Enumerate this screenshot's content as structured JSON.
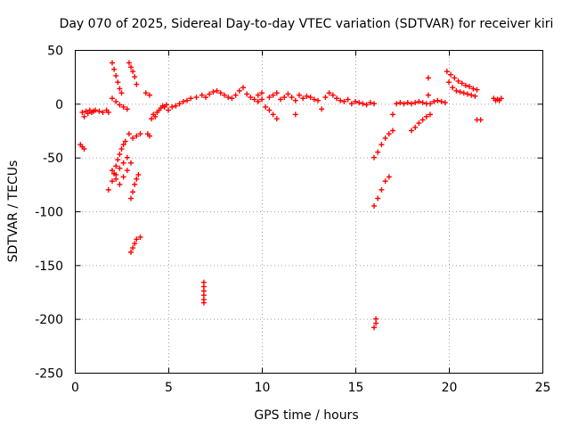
{
  "chart_data": {
    "type": "scatter",
    "title": "Day 070 of 2025, Sidereal Day-to-day VTEC variation (SDTVAR) for receiver kiri",
    "xlabel": "GPS time / hours",
    "ylabel": "SDTVAR / TECUs",
    "xlim": [
      0,
      25
    ],
    "ylim": [
      -250,
      50
    ],
    "xticks": [
      0,
      5,
      10,
      15,
      20,
      25
    ],
    "yticks": [
      -250,
      -200,
      -150,
      -100,
      -50,
      0,
      50
    ],
    "grid": true,
    "marker": "plus",
    "series": [
      {
        "color": "#ff0000",
        "points": [
          [
            0.3,
            -38
          ],
          [
            0.4,
            -40
          ],
          [
            0.5,
            -42
          ],
          [
            0.4,
            -8
          ],
          [
            0.5,
            -12
          ],
          [
            0.6,
            -7
          ],
          [
            0.7,
            -9
          ],
          [
            0.8,
            -6
          ],
          [
            0.9,
            -8
          ],
          [
            1.0,
            -7
          ],
          [
            1.1,
            -6
          ],
          [
            1.3,
            -7
          ],
          [
            1.5,
            -8
          ],
          [
            1.7,
            -6
          ],
          [
            1.8,
            -8
          ],
          [
            2.0,
            38
          ],
          [
            2.1,
            32
          ],
          [
            2.2,
            26
          ],
          [
            2.3,
            20
          ],
          [
            2.4,
            14
          ],
          [
            2.5,
            10
          ],
          [
            2.0,
            5
          ],
          [
            2.2,
            2
          ],
          [
            2.4,
            -1
          ],
          [
            2.6,
            -3
          ],
          [
            2.8,
            -5
          ],
          [
            1.8,
            -80
          ],
          [
            2.0,
            -72
          ],
          [
            2.1,
            -65
          ],
          [
            2.2,
            -58
          ],
          [
            2.3,
            -52
          ],
          [
            2.4,
            -47
          ],
          [
            2.5,
            -42
          ],
          [
            2.6,
            -38
          ],
          [
            2.7,
            -35
          ],
          [
            2.0,
            -62
          ],
          [
            2.2,
            -66
          ],
          [
            2.4,
            -60
          ],
          [
            2.6,
            -55
          ],
          [
            2.8,
            -50
          ],
          [
            2.2,
            -70
          ],
          [
            2.4,
            -75
          ],
          [
            2.6,
            -68
          ],
          [
            2.8,
            -62
          ],
          [
            3.0,
            -55
          ],
          [
            2.9,
            -28
          ],
          [
            3.1,
            -32
          ],
          [
            3.3,
            -30
          ],
          [
            3.5,
            -28
          ],
          [
            2.9,
            38
          ],
          [
            3.0,
            34
          ],
          [
            3.1,
            30
          ],
          [
            3.2,
            25
          ],
          [
            3.3,
            18
          ],
          [
            3.0,
            -88
          ],
          [
            3.1,
            -82
          ],
          [
            3.2,
            -75
          ],
          [
            3.3,
            -70
          ],
          [
            3.4,
            -66
          ],
          [
            3.0,
            -138
          ],
          [
            3.1,
            -134
          ],
          [
            3.2,
            -130
          ],
          [
            3.3,
            -126
          ],
          [
            3.5,
            -124
          ],
          [
            3.8,
            10
          ],
          [
            4.0,
            8
          ],
          [
            3.9,
            -28
          ],
          [
            4.0,
            -30
          ],
          [
            4.1,
            -14
          ],
          [
            4.2,
            -10
          ],
          [
            4.3,
            -12
          ],
          [
            4.4,
            -8
          ],
          [
            4.5,
            -6
          ],
          [
            4.6,
            -4
          ],
          [
            4.7,
            -2
          ],
          [
            4.8,
            -3
          ],
          [
            4.9,
            -1
          ],
          [
            5.0,
            -6
          ],
          [
            5.2,
            -3
          ],
          [
            5.4,
            -2
          ],
          [
            5.6,
            0
          ],
          [
            5.8,
            2
          ],
          [
            6.0,
            3
          ],
          [
            6.2,
            5
          ],
          [
            6.5,
            6
          ],
          [
            6.8,
            8
          ],
          [
            7.0,
            6
          ],
          [
            7.2,
            9
          ],
          [
            7.4,
            11
          ],
          [
            7.6,
            12
          ],
          [
            7.8,
            10
          ],
          [
            8.0,
            8
          ],
          [
            8.2,
            6
          ],
          [
            8.4,
            5
          ],
          [
            8.6,
            8
          ],
          [
            8.8,
            12
          ],
          [
            9.0,
            15
          ],
          [
            9.2,
            9
          ],
          [
            9.4,
            6
          ],
          [
            9.6,
            4
          ],
          [
            9.8,
            8
          ],
          [
            9.8,
            2
          ],
          [
            10.0,
            10
          ],
          [
            10.0,
            4
          ],
          [
            10.2,
            -3
          ],
          [
            10.4,
            -6
          ],
          [
            10.6,
            -10
          ],
          [
            10.8,
            -14
          ],
          [
            10.4,
            6
          ],
          [
            10.6,
            8
          ],
          [
            10.8,
            10
          ],
          [
            11.0,
            4
          ],
          [
            11.2,
            6
          ],
          [
            11.4,
            9
          ],
          [
            11.6,
            6
          ],
          [
            11.8,
            3
          ],
          [
            11.8,
            -10
          ],
          [
            12.0,
            8
          ],
          [
            12.2,
            5
          ],
          [
            12.4,
            7
          ],
          [
            12.6,
            6
          ],
          [
            12.8,
            4
          ],
          [
            13.0,
            3
          ],
          [
            13.2,
            -5
          ],
          [
            13.4,
            6
          ],
          [
            13.6,
            10
          ],
          [
            13.8,
            8
          ],
          [
            14.0,
            5
          ],
          [
            14.2,
            3
          ],
          [
            14.4,
            2
          ],
          [
            14.6,
            4
          ],
          [
            14.8,
            0
          ],
          [
            15.0,
            2
          ],
          [
            15.2,
            1
          ],
          [
            15.4,
            0
          ],
          [
            15.6,
            -1
          ],
          [
            15.8,
            1
          ],
          [
            16.0,
            0
          ],
          [
            6.9,
            -166
          ],
          [
            6.9,
            -170
          ],
          [
            6.9,
            -174
          ],
          [
            6.9,
            -178
          ],
          [
            6.9,
            -182
          ],
          [
            6.9,
            -185
          ],
          [
            16.0,
            -95
          ],
          [
            16.2,
            -88
          ],
          [
            16.4,
            -80
          ],
          [
            16.6,
            -72
          ],
          [
            16.8,
            -68
          ],
          [
            16.0,
            -50
          ],
          [
            16.2,
            -45
          ],
          [
            16.4,
            -38
          ],
          [
            16.6,
            -32
          ],
          [
            16.8,
            -28
          ],
          [
            17.0,
            -25
          ],
          [
            16.0,
            -208
          ],
          [
            16.1,
            -204
          ],
          [
            16.1,
            -200
          ],
          [
            17.0,
            -10
          ],
          [
            17.2,
            0
          ],
          [
            17.4,
            1
          ],
          [
            17.6,
            0
          ],
          [
            17.8,
            1
          ],
          [
            18.0,
            0
          ],
          [
            18.2,
            1
          ],
          [
            18.4,
            2
          ],
          [
            18.6,
            1
          ],
          [
            18.8,
            0
          ],
          [
            18.0,
            -25
          ],
          [
            18.2,
            -22
          ],
          [
            18.4,
            -18
          ],
          [
            18.6,
            -15
          ],
          [
            18.8,
            -12
          ],
          [
            19.0,
            -10
          ],
          [
            19.0,
            0
          ],
          [
            19.2,
            2
          ],
          [
            19.4,
            3
          ],
          [
            19.6,
            2
          ],
          [
            19.8,
            1
          ],
          [
            18.9,
            24
          ],
          [
            18.9,
            8
          ],
          [
            19.9,
            30
          ],
          [
            20.1,
            27
          ],
          [
            20.3,
            24
          ],
          [
            20.5,
            21
          ],
          [
            20.7,
            19
          ],
          [
            20.9,
            17
          ],
          [
            21.1,
            16
          ],
          [
            21.3,
            14
          ],
          [
            21.5,
            13
          ],
          [
            20.0,
            20
          ],
          [
            20.2,
            15
          ],
          [
            20.4,
            12
          ],
          [
            20.6,
            11
          ],
          [
            20.8,
            10
          ],
          [
            21.0,
            9
          ],
          [
            21.2,
            8
          ],
          [
            21.4,
            7
          ],
          [
            21.5,
            -15
          ],
          [
            21.7,
            -15
          ],
          [
            22.4,
            5
          ],
          [
            22.6,
            4
          ],
          [
            22.8,
            5
          ],
          [
            22.5,
            3
          ],
          [
            22.7,
            3
          ]
        ]
      }
    ]
  }
}
